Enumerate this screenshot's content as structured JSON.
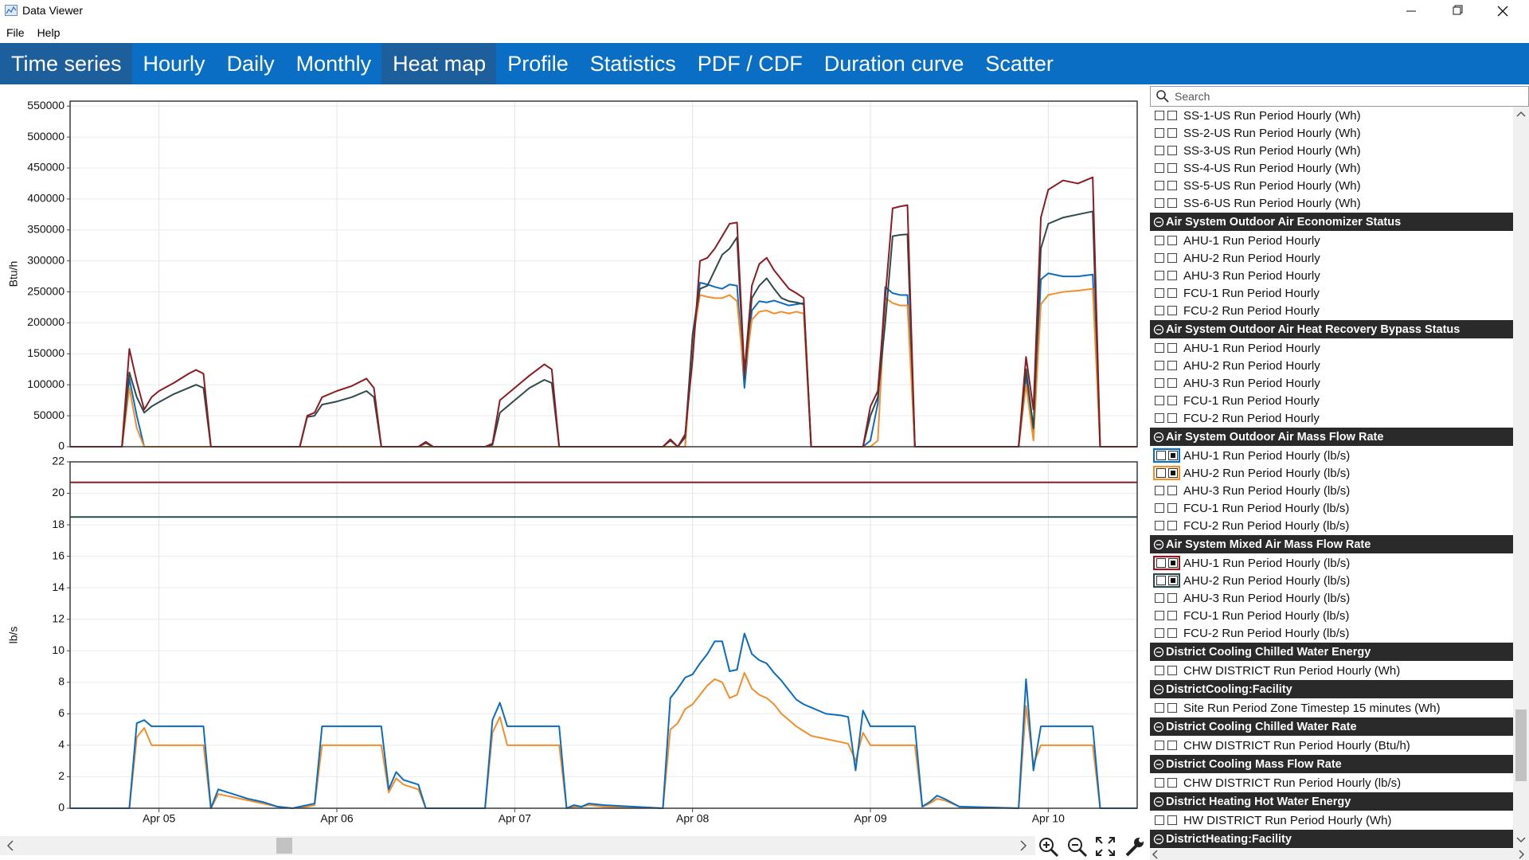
{
  "window_title": "Data Viewer",
  "menu": [
    "File",
    "Help"
  ],
  "tabs": [
    {
      "label": "Time series",
      "highlighted": true
    },
    {
      "label": "Hourly",
      "highlighted": false
    },
    {
      "label": "Daily",
      "highlighted": false
    },
    {
      "label": "Monthly",
      "highlighted": false
    },
    {
      "label": "Heat map",
      "highlighted": true
    },
    {
      "label": "Profile",
      "highlighted": false
    },
    {
      "label": "Statistics",
      "highlighted": false
    },
    {
      "label": "PDF / CDF",
      "highlighted": false
    },
    {
      "label": "Duration curve",
      "highlighted": false
    },
    {
      "label": "Scatter",
      "highlighted": false
    }
  ],
  "search_placeholder": "Search",
  "x_axis": {
    "xlim": [
      0,
      144
    ],
    "xticks": [
      {
        "value": 12,
        "label": "Apr 05"
      },
      {
        "value": 36,
        "label": "Apr 06"
      },
      {
        "value": 60,
        "label": "Apr 07"
      },
      {
        "value": 84,
        "label": "Apr 08"
      },
      {
        "value": 108,
        "label": "Apr 09"
      },
      {
        "value": 132,
        "label": "Apr 10"
      }
    ]
  },
  "charts": [
    {
      "type": "line",
      "ylabel": "Btu/h",
      "ylim": [
        0,
        558000
      ],
      "yticks": [
        0,
        50000,
        100000,
        150000,
        200000,
        250000,
        300000,
        350000,
        400000,
        450000,
        500000,
        550000
      ],
      "grid": true,
      "x": [
        0,
        7,
        8,
        9,
        10,
        11,
        12,
        14,
        16,
        17,
        18,
        19,
        31,
        32,
        33,
        34,
        36,
        38,
        40,
        41,
        42,
        47,
        48,
        49,
        56,
        57,
        58,
        60,
        62,
        64,
        65,
        66,
        67,
        80,
        81,
        82,
        83,
        84,
        85,
        86,
        87,
        88,
        89,
        90,
        91,
        92,
        93,
        94,
        95,
        96,
        97,
        98,
        99,
        100,
        106,
        107,
        108,
        109,
        110,
        111,
        112,
        113,
        114,
        127,
        128,
        129,
        130,
        131,
        132,
        134,
        136,
        138,
        139,
        144
      ],
      "series": [
        {
          "color": "#0c6cc0",
          "values": [
            0,
            0,
            110000,
            50000,
            0,
            0,
            0,
            0,
            0,
            0,
            0,
            0,
            0,
            0,
            0,
            0,
            0,
            0,
            0,
            0,
            0,
            0,
            0,
            0,
            0,
            0,
            0,
            0,
            0,
            0,
            0,
            0,
            0,
            0,
            0,
            0,
            0,
            180000,
            265000,
            262000,
            258000,
            255000,
            262000,
            260000,
            95000,
            220000,
            235000,
            233000,
            236000,
            232000,
            228000,
            230000,
            232000,
            0,
            0,
            0,
            10000,
            70000,
            258000,
            248000,
            245000,
            245000,
            0,
            0,
            0,
            115000,
            20000,
            270000,
            280000,
            275000,
            275000,
            278000,
            0,
            0
          ]
        },
        {
          "color": "#f28e2b",
          "values": [
            0,
            0,
            95000,
            30000,
            0,
            0,
            0,
            0,
            0,
            0,
            0,
            0,
            0,
            0,
            0,
            0,
            0,
            0,
            0,
            0,
            0,
            0,
            0,
            0,
            0,
            0,
            0,
            0,
            0,
            0,
            0,
            0,
            0,
            0,
            0,
            0,
            0,
            170000,
            245000,
            242000,
            240000,
            240000,
            245000,
            235000,
            110000,
            205000,
            218000,
            220000,
            215000,
            218000,
            215000,
            218000,
            215000,
            0,
            0,
            0,
            0,
            10000,
            240000,
            232000,
            228000,
            228000,
            0,
            0,
            0,
            100000,
            10000,
            230000,
            245000,
            250000,
            252000,
            255000,
            0,
            0
          ]
        },
        {
          "color": "#2f4a4a",
          "values": [
            0,
            0,
            120000,
            80000,
            55000,
            65000,
            72000,
            85000,
            95000,
            100000,
            95000,
            0,
            0,
            48000,
            50000,
            68000,
            73000,
            80000,
            90000,
            80000,
            0,
            0,
            6000,
            0,
            0,
            3000,
            55000,
            75000,
            95000,
            108000,
            103000,
            0,
            0,
            0,
            10000,
            0,
            15000,
            180000,
            255000,
            260000,
            285000,
            310000,
            320000,
            338000,
            110000,
            240000,
            260000,
            272000,
            255000,
            240000,
            235000,
            233000,
            230000,
            0,
            0,
            0,
            50000,
            80000,
            200000,
            340000,
            342000,
            343000,
            0,
            0,
            0,
            125000,
            30000,
            320000,
            360000,
            370000,
            375000,
            380000,
            0,
            0
          ]
        },
        {
          "color": "#8b1c24",
          "values": [
            0,
            0,
            158000,
            105000,
            60000,
            80000,
            90000,
            103000,
            118000,
            124000,
            118000,
            0,
            0,
            50000,
            55000,
            80000,
            90000,
            98000,
            110000,
            95000,
            0,
            0,
            8000,
            0,
            0,
            5000,
            75000,
            95000,
            115000,
            133000,
            125000,
            0,
            0,
            0,
            12000,
            0,
            20000,
            140000,
            300000,
            305000,
            320000,
            340000,
            360000,
            362000,
            120000,
            260000,
            295000,
            305000,
            285000,
            270000,
            255000,
            248000,
            240000,
            0,
            0,
            0,
            65000,
            90000,
            240000,
            385000,
            388000,
            390000,
            0,
            0,
            0,
            145000,
            60000,
            370000,
            415000,
            430000,
            425000,
            435000,
            0,
            0
          ]
        }
      ]
    },
    {
      "type": "line",
      "ylabel": "lb/s",
      "ylim": [
        0,
        22
      ],
      "yticks": [
        0,
        2,
        4,
        6,
        8,
        10,
        12,
        14,
        16,
        18,
        20,
        22
      ],
      "grid": true,
      "series": [
        {
          "color": "#8b1c24",
          "x": [
            0,
            144
          ],
          "values": [
            20.7,
            20.7
          ]
        },
        {
          "color": "#2f4a4a",
          "x": [
            0,
            144
          ],
          "values": [
            18.5,
            18.5
          ]
        },
        {
          "color": "#f28e2b",
          "x": [
            0,
            8,
            9,
            10,
            11,
            18,
            19,
            20,
            22,
            24,
            26,
            28,
            30,
            32,
            33,
            34,
            42,
            43,
            44,
            45,
            47,
            48,
            56,
            57,
            58,
            59,
            66,
            67,
            68,
            69,
            70,
            72,
            80,
            81,
            82,
            83,
            84,
            85,
            86,
            87,
            88,
            89,
            90,
            91,
            92,
            93,
            94,
            95,
            96,
            97,
            98,
            99,
            100,
            102,
            104,
            105,
            106,
            107,
            108,
            114,
            115,
            116,
            117,
            118,
            120,
            128,
            129,
            130,
            131,
            138,
            139,
            144
          ],
          "values": [
            0,
            0,
            4.5,
            5.1,
            4.0,
            4.0,
            0,
            0.9,
            0.7,
            0.5,
            0.3,
            0.1,
            0,
            0.1,
            0.2,
            4.0,
            4.0,
            1.0,
            1.9,
            1.5,
            1.2,
            0,
            0,
            4.8,
            5.8,
            4.0,
            4.0,
            0,
            0.1,
            0.1,
            0.2,
            0.1,
            0,
            5.0,
            5.4,
            6.3,
            6.6,
            7.2,
            7.8,
            8.2,
            8.0,
            7.0,
            7.2,
            8.6,
            7.6,
            7.2,
            7.0,
            6.6,
            6.0,
            5.6,
            5.2,
            4.9,
            4.6,
            4.4,
            4.2,
            4.1,
            3.0,
            4.8,
            4.0,
            4.0,
            0.1,
            0.3,
            0.6,
            0.5,
            0.1,
            0,
            6.5,
            2.8,
            4.0,
            4.0,
            0,
            0
          ]
        },
        {
          "color": "#0c6cc0",
          "x": [
            0,
            8,
            9,
            10,
            11,
            18,
            19,
            20,
            22,
            24,
            26,
            28,
            30,
            32,
            33,
            34,
            42,
            43,
            44,
            45,
            47,
            48,
            56,
            57,
            58,
            59,
            66,
            67,
            68,
            69,
            70,
            72,
            80,
            81,
            82,
            83,
            84,
            85,
            86,
            87,
            88,
            89,
            90,
            91,
            92,
            93,
            94,
            95,
            96,
            97,
            98,
            99,
            100,
            102,
            104,
            105,
            106,
            107,
            108,
            114,
            115,
            116,
            117,
            118,
            120,
            128,
            129,
            130,
            131,
            138,
            139,
            144
          ],
          "values": [
            0,
            0,
            5.4,
            5.6,
            5.2,
            5.2,
            0,
            1.2,
            0.9,
            0.6,
            0.4,
            0.1,
            0,
            0.2,
            0.3,
            5.2,
            5.2,
            1.2,
            2.3,
            1.8,
            1.5,
            0,
            0,
            5.6,
            6.7,
            5.2,
            5.2,
            0,
            0.2,
            0.1,
            0.3,
            0.2,
            0,
            7.0,
            7.6,
            8.3,
            8.5,
            9.2,
            9.8,
            10.6,
            10.6,
            8.7,
            8.8,
            11.1,
            9.8,
            9.4,
            9.2,
            8.6,
            8.1,
            7.5,
            6.9,
            6.6,
            6.4,
            6.0,
            5.9,
            5.8,
            2.4,
            6.2,
            5.2,
            5.2,
            0.1,
            0.4,
            0.8,
            0.6,
            0.1,
            0,
            8.2,
            2.4,
            5.2,
            5.2,
            0,
            0
          ]
        }
      ]
    }
  ],
  "tree": [
    {
      "items": [
        {
          "label": "SS-1-US Run Period Hourly (Wh)"
        },
        {
          "label": "SS-2-US Run Period Hourly (Wh)"
        },
        {
          "label": "SS-3-US Run Period Hourly (Wh)"
        },
        {
          "label": "SS-4-US Run Period Hourly (Wh)"
        },
        {
          "label": "SS-5-US Run Period Hourly (Wh)"
        },
        {
          "label": "SS-6-US Run Period Hourly (Wh)"
        }
      ]
    },
    {
      "header": "Air System Outdoor Air Economizer Status",
      "items": [
        {
          "label": "AHU-1 Run Period Hourly"
        },
        {
          "label": "AHU-2 Run Period Hourly"
        },
        {
          "label": "AHU-3 Run Period Hourly"
        },
        {
          "label": "FCU-1 Run Period Hourly"
        },
        {
          "label": "FCU-2 Run Period Hourly"
        }
      ]
    },
    {
      "header": "Air System Outdoor Air Heat Recovery Bypass Status",
      "items": [
        {
          "label": "AHU-1 Run Period Hourly"
        },
        {
          "label": "AHU-2 Run Period Hourly"
        },
        {
          "label": "AHU-3 Run Period Hourly"
        },
        {
          "label": "FCU-1 Run Period Hourly"
        },
        {
          "label": "FCU-2 Run Period Hourly"
        }
      ]
    },
    {
      "header": "Air System Outdoor Air Mass Flow Rate",
      "items": [
        {
          "label": "AHU-1 Run Period Hourly (lb/s)",
          "color": "#0c6cc0"
        },
        {
          "label": "AHU-2 Run Period Hourly (lb/s)",
          "color": "#f28e2b"
        },
        {
          "label": "AHU-3 Run Period Hourly (lb/s)"
        },
        {
          "label": "FCU-1 Run Period Hourly (lb/s)"
        },
        {
          "label": "FCU-2 Run Period Hourly (lb/s)"
        }
      ]
    },
    {
      "header": "Air System Mixed Air Mass Flow Rate",
      "items": [
        {
          "label": "AHU-1 Run Period Hourly (lb/s)",
          "color": "#8b1c24"
        },
        {
          "label": "AHU-2 Run Period Hourly (lb/s)",
          "color": "#2f4a4a"
        },
        {
          "label": "AHU-3 Run Period Hourly (lb/s)"
        },
        {
          "label": "FCU-1 Run Period Hourly (lb/s)"
        },
        {
          "label": "FCU-2 Run Period Hourly (lb/s)"
        }
      ]
    },
    {
      "header": "District Cooling Chilled Water Energy",
      "items": [
        {
          "label": "CHW DISTRICT Run Period Hourly (Wh)"
        }
      ]
    },
    {
      "header": "DistrictCooling:Facility",
      "items": [
        {
          "label": "Site Run Period Zone Timestep 15 minutes (Wh)"
        }
      ]
    },
    {
      "header": "District Cooling Chilled Water Rate",
      "items": [
        {
          "label": "CHW DISTRICT Run Period Hourly (Btu/h)"
        }
      ]
    },
    {
      "header": "District Cooling Mass Flow Rate",
      "items": [
        {
          "label": "CHW DISTRICT Run Period Hourly (lb/s)"
        }
      ]
    },
    {
      "header": "District Heating Hot Water Energy",
      "items": [
        {
          "label": "HW DISTRICT Run Period Hourly (Wh)"
        }
      ]
    },
    {
      "header": "DistrictHeating:Facility",
      "items": []
    }
  ]
}
